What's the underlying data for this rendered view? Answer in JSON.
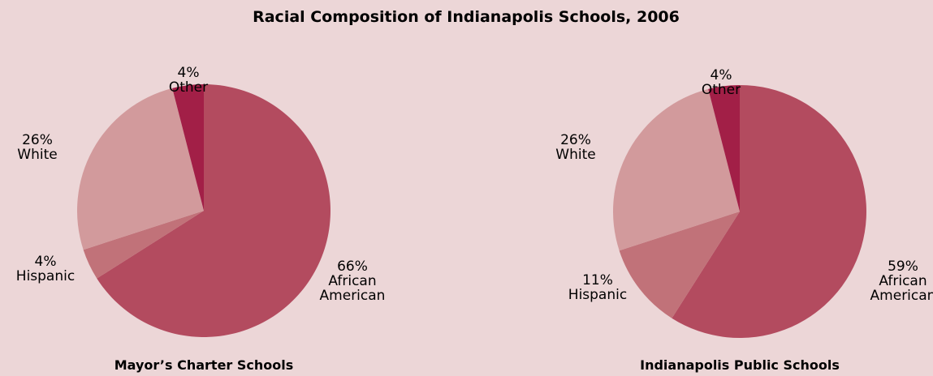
{
  "title": "Racial Composition of Indianapolis Schools, 2006",
  "colors": {
    "background": "#ecd6d7",
    "African American": "#b34b5f",
    "Hispanic": "#c17279",
    "White": "#d29a9c",
    "Other": "#a21f47"
  },
  "chart_data": [
    {
      "type": "pie",
      "title": "Mayor’s Charter Schools",
      "slices": [
        {
          "label": "African American",
          "display_label": [
            "African",
            "American"
          ],
          "value": 66,
          "value_label": "66%"
        },
        {
          "label": "Hispanic",
          "display_label": [
            "Hispanic"
          ],
          "value": 4,
          "value_label": "4%"
        },
        {
          "label": "White",
          "display_label": [
            "White"
          ],
          "value": 26,
          "value_label": "26%"
        },
        {
          "label": "Other",
          "display_label": [
            "Other"
          ],
          "value": 4,
          "value_label": "4%"
        }
      ]
    },
    {
      "type": "pie",
      "title": "Indianapolis Public Schools",
      "slices": [
        {
          "label": "African American",
          "display_label": [
            "African",
            "American"
          ],
          "value": 59,
          "value_label": "59%"
        },
        {
          "label": "Hispanic",
          "display_label": [
            "Hispanic"
          ],
          "value": 11,
          "value_label": "11%"
        },
        {
          "label": "White",
          "display_label": [
            "White"
          ],
          "value": 26,
          "value_label": "26%"
        },
        {
          "label": "Other",
          "display_label": [
            "Other"
          ],
          "value": 4,
          "value_label": "4%"
        }
      ]
    }
  ]
}
